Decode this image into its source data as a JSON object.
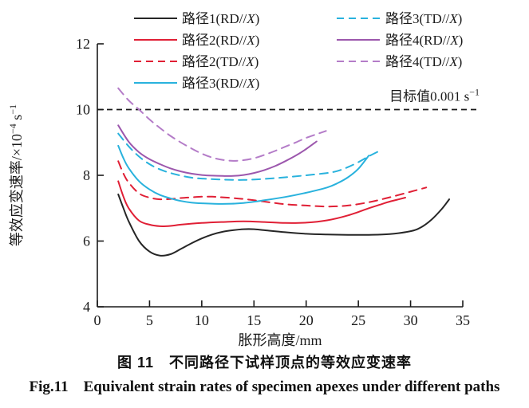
{
  "figure": {
    "caption_zh": "图 11　不同路径下试样顶点的等效应变速率",
    "caption_en": "Fig.11　Equivalent strain rates of specimen apexes under different paths"
  },
  "chart_data": {
    "type": "line",
    "xlabel": "胀形高度/mm",
    "ylabel": "等效应变速率/×10⁻⁴ s⁻¹",
    "ylabel_parts": {
      "pre": "等效应变速率/×10",
      "sup1": "−4",
      "mid": " s",
      "sup2": "−1"
    },
    "xlim": [
      0,
      35
    ],
    "ylim": [
      4,
      12
    ],
    "xticks": [
      0,
      5,
      10,
      15,
      20,
      25,
      30,
      35
    ],
    "yticks": [
      4,
      6,
      8,
      10,
      12
    ],
    "grid": false,
    "legend_position": "top",
    "axis_color": "#1a1a1a",
    "target_line": {
      "value": 10,
      "label": "目标值0.001 s⁻¹",
      "label_parts": {
        "pre": "目标值0.001 s",
        "sup": "−1"
      },
      "style": "dashed",
      "color": "#1a1a1a"
    },
    "series": [
      {
        "name": "路径1(RD//X)",
        "color": "#262626",
        "dash": false,
        "points": [
          [
            2,
            7.42
          ],
          [
            2.5,
            7.0
          ],
          [
            3,
            6.6
          ],
          [
            4,
            6.0
          ],
          [
            5,
            5.68
          ],
          [
            6,
            5.56
          ],
          [
            7,
            5.6
          ],
          [
            8,
            5.76
          ],
          [
            9,
            5.93
          ],
          [
            10,
            6.08
          ],
          [
            11,
            6.2
          ],
          [
            12,
            6.28
          ],
          [
            13,
            6.33
          ],
          [
            14,
            6.36
          ],
          [
            15,
            6.36
          ],
          [
            16,
            6.33
          ],
          [
            18,
            6.27
          ],
          [
            20,
            6.22
          ],
          [
            22,
            6.2
          ],
          [
            24,
            6.19
          ],
          [
            26,
            6.19
          ],
          [
            28,
            6.21
          ],
          [
            30,
            6.3
          ],
          [
            31,
            6.42
          ],
          [
            32,
            6.65
          ],
          [
            33,
            6.98
          ],
          [
            33.7,
            7.27
          ]
        ]
      },
      {
        "name": "路径2(RD//X)",
        "color": "#e01f35",
        "dash": false,
        "points": [
          [
            2,
            7.82
          ],
          [
            2.5,
            7.35
          ],
          [
            3,
            7.0
          ],
          [
            4,
            6.62
          ],
          [
            5,
            6.5
          ],
          [
            6,
            6.45
          ],
          [
            7,
            6.46
          ],
          [
            8,
            6.5
          ],
          [
            10,
            6.55
          ],
          [
            12,
            6.58
          ],
          [
            14,
            6.6
          ],
          [
            16,
            6.58
          ],
          [
            18,
            6.55
          ],
          [
            20,
            6.56
          ],
          [
            22,
            6.63
          ],
          [
            24,
            6.78
          ],
          [
            26,
            7.0
          ],
          [
            27,
            7.1
          ],
          [
            28,
            7.2
          ],
          [
            29,
            7.28
          ],
          [
            29.5,
            7.32
          ]
        ]
      },
      {
        "name": "路径2(TD//X)",
        "color": "#e01f35",
        "dash": true,
        "points": [
          [
            2,
            8.43
          ],
          [
            2.5,
            8.05
          ],
          [
            3,
            7.78
          ],
          [
            4,
            7.45
          ],
          [
            5,
            7.32
          ],
          [
            6,
            7.27
          ],
          [
            7,
            7.28
          ],
          [
            8,
            7.31
          ],
          [
            9,
            7.33
          ],
          [
            10,
            7.35
          ],
          [
            11,
            7.35
          ],
          [
            12,
            7.33
          ],
          [
            14,
            7.28
          ],
          [
            16,
            7.2
          ],
          [
            18,
            7.12
          ],
          [
            20,
            7.08
          ],
          [
            22,
            7.05
          ],
          [
            24,
            7.08
          ],
          [
            26,
            7.18
          ],
          [
            28,
            7.33
          ],
          [
            30,
            7.5
          ],
          [
            31.5,
            7.63
          ]
        ]
      },
      {
        "name": "路径3(RD//X)",
        "color": "#29b2dd",
        "dash": false,
        "points": [
          [
            2,
            8.9
          ],
          [
            2.5,
            8.52
          ],
          [
            3,
            8.22
          ],
          [
            4,
            7.82
          ],
          [
            5,
            7.57
          ],
          [
            6,
            7.4
          ],
          [
            7,
            7.3
          ],
          [
            8,
            7.22
          ],
          [
            9,
            7.17
          ],
          [
            10,
            7.15
          ],
          [
            12,
            7.13
          ],
          [
            14,
            7.16
          ],
          [
            16,
            7.24
          ],
          [
            18,
            7.34
          ],
          [
            20,
            7.47
          ],
          [
            22,
            7.63
          ],
          [
            23,
            7.76
          ],
          [
            24,
            7.94
          ],
          [
            25,
            8.2
          ],
          [
            26,
            8.6
          ]
        ]
      },
      {
        "name": "路径3(TD//X)",
        "color": "#29b2dd",
        "dash": true,
        "points": [
          [
            2,
            9.27
          ],
          [
            3,
            8.88
          ],
          [
            4,
            8.57
          ],
          [
            5,
            8.34
          ],
          [
            6,
            8.18
          ],
          [
            7,
            8.07
          ],
          [
            8,
            7.99
          ],
          [
            9,
            7.93
          ],
          [
            10,
            7.9
          ],
          [
            12,
            7.87
          ],
          [
            14,
            7.86
          ],
          [
            16,
            7.89
          ],
          [
            18,
            7.94
          ],
          [
            20,
            8.0
          ],
          [
            22,
            8.07
          ],
          [
            23,
            8.13
          ],
          [
            24,
            8.25
          ],
          [
            25,
            8.4
          ],
          [
            26,
            8.58
          ],
          [
            27,
            8.74
          ]
        ]
      },
      {
        "name": "路径4(RD//X)",
        "color": "#9c57ad",
        "dash": false,
        "points": [
          [
            2,
            9.52
          ],
          [
            3,
            9.02
          ],
          [
            4,
            8.7
          ],
          [
            5,
            8.49
          ],
          [
            6,
            8.34
          ],
          [
            7,
            8.21
          ],
          [
            8,
            8.12
          ],
          [
            9,
            8.05
          ],
          [
            10,
            8.01
          ],
          [
            11,
            7.99
          ],
          [
            12,
            7.98
          ],
          [
            13,
            7.98
          ],
          [
            14,
            8.01
          ],
          [
            15,
            8.07
          ],
          [
            16,
            8.16
          ],
          [
            17,
            8.28
          ],
          [
            18,
            8.43
          ],
          [
            19,
            8.6
          ],
          [
            20,
            8.8
          ],
          [
            21,
            9.03
          ]
        ]
      },
      {
        "name": "路径4(TD//X)",
        "color": "#b47cc8",
        "dash": true,
        "points": [
          [
            2,
            10.65
          ],
          [
            3,
            10.28
          ],
          [
            4,
            10.0
          ],
          [
            5,
            9.7
          ],
          [
            6,
            9.44
          ],
          [
            7,
            9.2
          ],
          [
            8,
            9.0
          ],
          [
            9,
            8.82
          ],
          [
            10,
            8.66
          ],
          [
            11,
            8.54
          ],
          [
            12,
            8.47
          ],
          [
            13,
            8.44
          ],
          [
            14,
            8.46
          ],
          [
            15,
            8.52
          ],
          [
            16,
            8.62
          ],
          [
            17,
            8.74
          ],
          [
            18,
            8.87
          ],
          [
            19,
            9.0
          ],
          [
            20,
            9.14
          ],
          [
            21,
            9.25
          ],
          [
            21.9,
            9.35
          ]
        ]
      }
    ]
  }
}
